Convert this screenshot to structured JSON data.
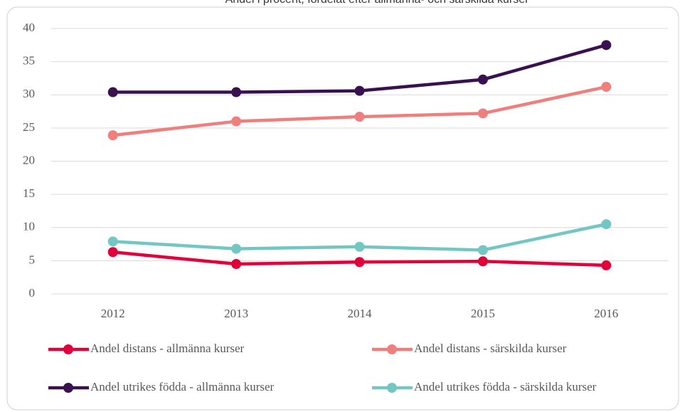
{
  "chart_data": {
    "type": "line",
    "title": "Andel i procent, fördelat efter allmänna- och särskilda kurser",
    "categories": [
      "2012",
      "2013",
      "2014",
      "2015",
      "2016"
    ],
    "series": [
      {
        "name": "Andel distans - allmänna kurser",
        "color": "#e2003b",
        "values": [
          6.3,
          4.5,
          4.8,
          4.9,
          4.3
        ]
      },
      {
        "name": "Andel distans - särskilda kurser",
        "color": "#ee7f7d",
        "values": [
          23.9,
          26.0,
          26.7,
          27.2,
          31.2
        ]
      },
      {
        "name": "Andel utrikes födda - allmänna kurser",
        "color": "#3a1150",
        "values": [
          30.4,
          30.4,
          30.6,
          32.3,
          37.5
        ]
      },
      {
        "name": "Andel utrikes födda - särskilda kurser",
        "color": "#72c7c4",
        "values": [
          7.9,
          6.8,
          7.1,
          6.6,
          10.5
        ]
      }
    ],
    "ylim": [
      0,
      40
    ],
    "yticks": [
      0,
      5,
      10,
      15,
      20,
      25,
      30,
      35,
      40
    ],
    "grid": true,
    "legend": "bottom"
  }
}
